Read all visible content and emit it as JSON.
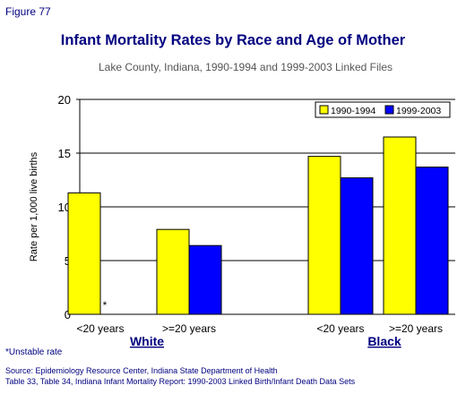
{
  "header": {
    "figure_label": "Figure 77",
    "title": "Infant Mortality Rates by Race and Age of Mother",
    "subtitle": "Lake County, Indiana, 1990-1994 and 1999-2003 Linked Files"
  },
  "chart_data": {
    "type": "bar",
    "title": "Infant Mortality Rates by Race and Age of Mother",
    "subtitle": "Lake County, Indiana, 1990-1994 and 1999-2003 Linked Files",
    "ylabel": "Rate per 1,000 live births",
    "xlabel": "",
    "ylim": [
      0,
      20
    ],
    "yticks": [
      0,
      5,
      10,
      15,
      20
    ],
    "grid": true,
    "legend_position": "top-right",
    "categories": [
      "<20 years",
      ">=20 years",
      "<20 years",
      ">=20 years"
    ],
    "groups": [
      {
        "label": "White",
        "categories": [
          "<20 years",
          ">=20 years"
        ]
      },
      {
        "label": "Black",
        "categories": [
          "<20 years",
          ">=20 years"
        ]
      }
    ],
    "series": [
      {
        "name": "1990-1994",
        "color": "#ffff00",
        "values": [
          11.3,
          7.9,
          14.7,
          16.5
        ]
      },
      {
        "name": "1999-2003",
        "color": "#0000ff",
        "values": [
          null,
          6.4,
          12.7,
          13.7
        ]
      }
    ],
    "annotations": [
      {
        "text": "*",
        "series": "1999-2003",
        "category_index": 0
      }
    ]
  },
  "footnote": "*Unstable rate",
  "source": {
    "line1": "Source: Epidemiology Resource Center, Indiana State Department of Health",
    "line2": "Table 33, Table 34, Indiana Infant Mortality Report: 1990-2003 Linked Birth/Infant Death Data Sets"
  }
}
